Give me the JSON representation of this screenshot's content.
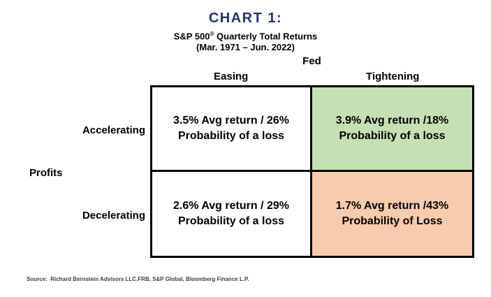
{
  "header": {
    "title": "CHART 1:",
    "subtitle_prefix": "S&P 500",
    "subtitle_reg": "®",
    "subtitle_suffix": " Quarterly Total Returns",
    "date_range": "(Mar. 1971 – Jun. 2022)"
  },
  "matrix": {
    "column_axis_label": "Fed",
    "row_axis_label": "Profits",
    "columns": [
      "Easing",
      "Tightening"
    ],
    "rows": [
      "Accelerating",
      "Decelerating"
    ],
    "cells": [
      {
        "line1": "3.5% Avg return / 26%",
        "line2": "Probability of a loss"
      },
      {
        "line1": "3.9% Avg return /18%",
        "line2": "Probability of a loss"
      },
      {
        "line1": "2.6% Avg return / 29%",
        "line2": "Probability of a loss"
      },
      {
        "line1": "1.7% Avg return /43%",
        "line2": "Probability of Loss"
      }
    ]
  },
  "source": "Source:  Richard Bernstein Advisors LLC.FRB, S&P Global, Bloomberg Finance L.P.",
  "colors": {
    "title_navy": "#1F3864",
    "cell_green": "#C6E0B4",
    "cell_orange": "#F8CBAD",
    "border_black": "#000000",
    "source_gray": "#3F3F3F",
    "background": "#FFFFFF"
  },
  "chart_data": {
    "type": "table",
    "title": "CHART 1: S&P 500® Quarterly Total Returns (Mar. 1971 – Jun. 2022)",
    "column_dimension": "Fed",
    "row_dimension": "Profits",
    "columns": [
      "Easing",
      "Tightening"
    ],
    "rows": [
      "Accelerating",
      "Decelerating"
    ],
    "cells": [
      [
        {
          "avg_return_pct": 3.5,
          "probability_of_loss_pct": 26,
          "highlight": "none"
        },
        {
          "avg_return_pct": 3.9,
          "probability_of_loss_pct": 18,
          "highlight": "green"
        }
      ],
      [
        {
          "avg_return_pct": 2.6,
          "probability_of_loss_pct": 29,
          "highlight": "none"
        },
        {
          "avg_return_pct": 1.7,
          "probability_of_loss_pct": 43,
          "highlight": "orange"
        }
      ]
    ],
    "source": "Richard Bernstein Advisors LLC. FRB, S&P Global, Bloomberg Finance L.P."
  }
}
